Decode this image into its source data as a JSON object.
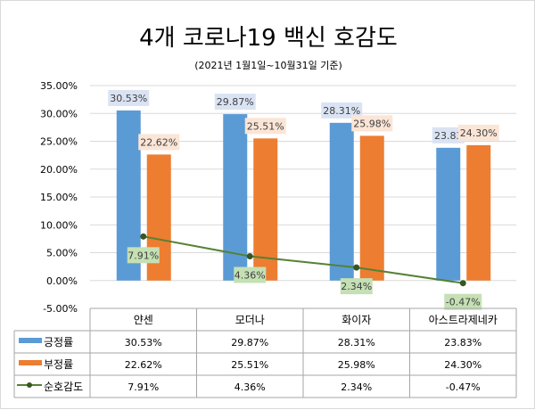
{
  "chart_data": {
    "type": "bar",
    "title": "4개 코로나19 백신 호감도",
    "subtitle": "(2021년 1월1일~10월31일 기준)",
    "categories": [
      "얀센",
      "모더나",
      "화이자",
      "아스트라제네카"
    ],
    "ylim": [
      -5,
      35
    ],
    "yticks": [
      "35.00%",
      "30.00%",
      "25.00%",
      "20.00%",
      "15.00%",
      "10.00%",
      "5.00%",
      "0.00%",
      "-5.00%"
    ],
    "ytick_values": [
      35,
      30,
      25,
      20,
      15,
      10,
      5,
      0,
      -5
    ],
    "grid": true,
    "legend": "data-table",
    "series": [
      {
        "name": "긍정률",
        "kind": "bar",
        "color": "#5b9bd5",
        "label_bg": "#dae3f3",
        "values": [
          30.53,
          29.87,
          28.31,
          23.83
        ],
        "labels": [
          "30.53%",
          "29.87%",
          "28.31%",
          "23.83"
        ],
        "table": [
          "30.53%",
          "29.87%",
          "28.31%",
          "23.83%"
        ]
      },
      {
        "name": "부정률",
        "kind": "bar",
        "color": "#ed7d31",
        "label_bg": "#fbe5d6",
        "values": [
          22.62,
          25.51,
          25.98,
          24.3
        ],
        "labels": [
          "22.62%",
          "25.51%",
          "25.98%",
          "24.30%"
        ],
        "table": [
          "22.62%",
          "25.51%",
          "25.98%",
          "24.30%"
        ]
      },
      {
        "name": "순호감도",
        "kind": "line",
        "color": "#548235",
        "label_bg": "#c5e0b4",
        "values": [
          7.91,
          4.36,
          2.34,
          -0.47
        ],
        "labels": [
          "7.91%",
          "4.36%",
          "2.34%",
          "-0.47%"
        ],
        "table": [
          "7.91%",
          "4.36%",
          "2.34%",
          "-0.47%"
        ]
      }
    ]
  }
}
